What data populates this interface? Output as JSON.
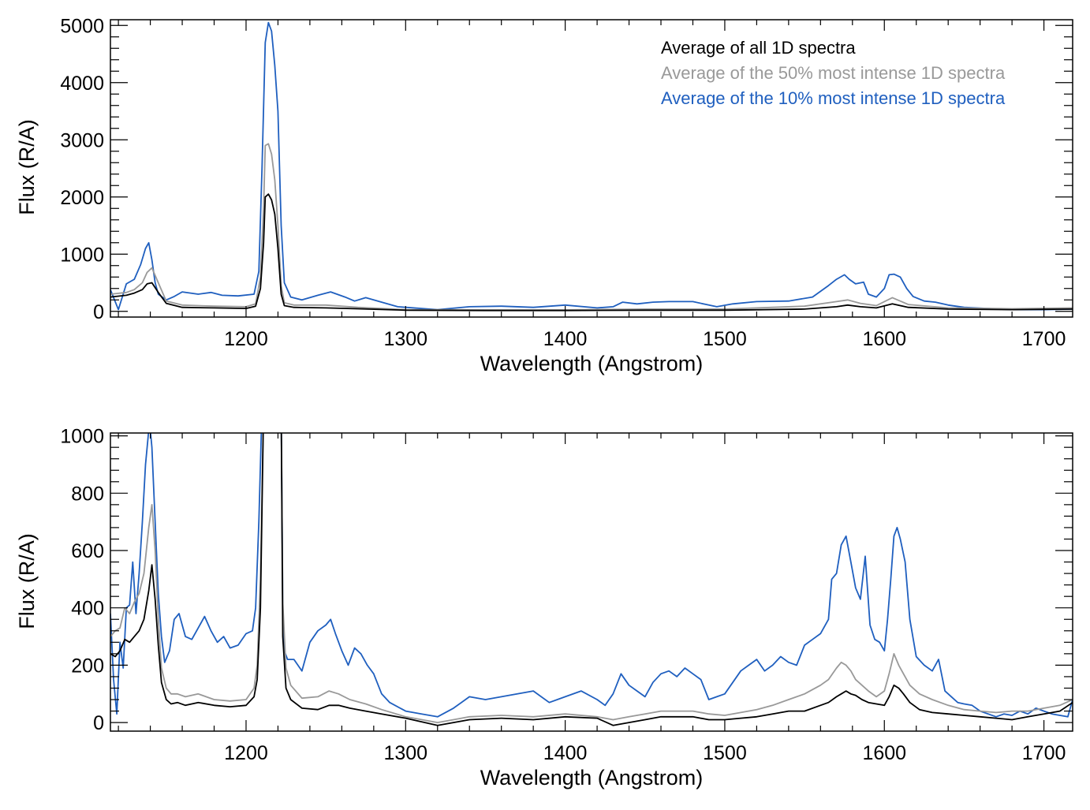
{
  "legend": {
    "items": [
      {
        "label": "Average of all 1D spectra",
        "color": "#000000"
      },
      {
        "label": "Average of the 50% most intense 1D spectra",
        "color": "#999999"
      },
      {
        "label": "Average of the 10% most intense 1D spectra",
        "color": "#1f5fbf"
      }
    ]
  },
  "chart_data": [
    {
      "type": "line",
      "xlabel": "Wavelength (Angstrom)",
      "ylabel": "Flux (R/A)",
      "xlim": [
        1115,
        1718
      ],
      "ylim": [
        -100,
        5100
      ],
      "xticks": [
        1200,
        1300,
        1400,
        1500,
        1600,
        1700
      ],
      "yticks": [
        0,
        1000,
        2000,
        3000,
        4000,
        5000
      ],
      "grid": false,
      "legend": "top-right",
      "series": [
        {
          "name": "Average of all 1D spectra",
          "color": "#000000",
          "x": [
            1115,
            1125,
            1130,
            1135,
            1138,
            1141,
            1145,
            1150,
            1160,
            1180,
            1200,
            1206,
            1209,
            1211,
            1212,
            1214,
            1216,
            1218,
            1220,
            1222,
            1224,
            1230,
            1250,
            1270,
            1300,
            1350,
            1400,
            1450,
            1500,
            1550,
            1570,
            1577,
            1585,
            1595,
            1605,
            1615,
            1640,
            1680,
            1718
          ],
          "y": [
            250,
            280,
            320,
            380,
            480,
            500,
            330,
            140,
            70,
            60,
            50,
            90,
            400,
            1200,
            2000,
            2050,
            1950,
            1700,
            1100,
            300,
            100,
            70,
            60,
            45,
            20,
            15,
            15,
            20,
            20,
            40,
            80,
            110,
            80,
            60,
            130,
            70,
            40,
            30,
            40
          ]
        },
        {
          "name": "Average of the 50% most intense 1D spectra",
          "color": "#999999",
          "x": [
            1115,
            1125,
            1130,
            1135,
            1138,
            1141,
            1145,
            1150,
            1160,
            1180,
            1200,
            1206,
            1209,
            1211,
            1212,
            1214,
            1216,
            1218,
            1220,
            1222,
            1224,
            1230,
            1250,
            1270,
            1300,
            1350,
            1400,
            1450,
            1500,
            1550,
            1570,
            1577,
            1585,
            1595,
            1605,
            1615,
            1640,
            1680,
            1718
          ],
          "y": [
            300,
            330,
            380,
            500,
            680,
            760,
            500,
            180,
            110,
            90,
            80,
            130,
            600,
            1800,
            2900,
            2930,
            2750,
            2300,
            1500,
            450,
            150,
            110,
            110,
            70,
            30,
            25,
            25,
            40,
            40,
            90,
            170,
            200,
            140,
            100,
            240,
            120,
            60,
            45,
            60
          ]
        },
        {
          "name": "Average of the 10% most intense 1D spectra",
          "color": "#1f5fbf",
          "x": [
            1115,
            1120,
            1125,
            1130,
            1134,
            1137,
            1139,
            1141,
            1143,
            1145,
            1150,
            1155,
            1160,
            1170,
            1178,
            1185,
            1195,
            1205,
            1208,
            1210,
            1212,
            1214,
            1216,
            1218,
            1220,
            1222,
            1224,
            1228,
            1235,
            1245,
            1253,
            1262,
            1268,
            1275,
            1285,
            1295,
            1320,
            1340,
            1360,
            1380,
            1400,
            1420,
            1430,
            1436,
            1445,
            1455,
            1465,
            1480,
            1495,
            1505,
            1520,
            1540,
            1555,
            1565,
            1570,
            1575,
            1578,
            1582,
            1587,
            1590,
            1595,
            1600,
            1603,
            1606,
            1610,
            1614,
            1618,
            1625,
            1632,
            1640,
            1650,
            1665,
            1680,
            1700,
            1718
          ],
          "y": [
            380,
            30,
            480,
            560,
            820,
            1100,
            1200,
            900,
            500,
            300,
            200,
            260,
            340,
            300,
            330,
            280,
            270,
            300,
            700,
            2500,
            4700,
            5050,
            4900,
            4300,
            3500,
            1500,
            500,
            250,
            200,
            280,
            340,
            250,
            180,
            240,
            160,
            80,
            30,
            80,
            90,
            70,
            110,
            60,
            80,
            160,
            130,
            160,
            170,
            170,
            80,
            130,
            170,
            180,
            250,
            450,
            560,
            640,
            560,
            480,
            510,
            300,
            250,
            400,
            640,
            650,
            600,
            400,
            260,
            180,
            160,
            110,
            70,
            50,
            30,
            30,
            40
          ]
        }
      ]
    },
    {
      "type": "line",
      "xlabel": "Wavelength (Angstrom)",
      "ylabel": "Flux (R/A)",
      "xlim": [
        1115,
        1718
      ],
      "ylim": [
        -30,
        1010
      ],
      "xticks": [
        1200,
        1300,
        1400,
        1500,
        1600,
        1700
      ],
      "yticks": [
        0,
        200,
        400,
        600,
        800,
        1000
      ],
      "grid": false,
      "series": [
        {
          "name": "Average of all 1D spectra",
          "color": "#000000",
          "x": [
            1115,
            1118,
            1121,
            1124,
            1127,
            1130,
            1133,
            1136,
            1139,
            1141,
            1143,
            1145,
            1147,
            1150,
            1153,
            1157,
            1162,
            1170,
            1180,
            1190,
            1200,
            1205,
            1207,
            1209,
            1211,
            1222,
            1223,
            1225,
            1228,
            1235,
            1245,
            1252,
            1258,
            1265,
            1275,
            1285,
            1300,
            1320,
            1330,
            1340,
            1360,
            1380,
            1400,
            1420,
            1430,
            1440,
            1450,
            1460,
            1470,
            1480,
            1490,
            1500,
            1510,
            1520,
            1530,
            1540,
            1550,
            1560,
            1565,
            1570,
            1573,
            1576,
            1579,
            1582,
            1586,
            1590,
            1595,
            1600,
            1603,
            1606,
            1609,
            1612,
            1616,
            1622,
            1630,
            1640,
            1650,
            1660,
            1670,
            1680,
            1690,
            1700,
            1710,
            1718
          ],
          "y": [
            240,
            230,
            250,
            290,
            280,
            300,
            320,
            360,
            460,
            550,
            430,
            270,
            140,
            80,
            65,
            70,
            60,
            70,
            60,
            55,
            60,
            90,
            150,
            400,
            1100,
            1100,
            300,
            120,
            80,
            50,
            45,
            60,
            60,
            50,
            40,
            30,
            15,
            -10,
            0,
            10,
            15,
            10,
            20,
            15,
            -10,
            0,
            10,
            20,
            20,
            20,
            10,
            10,
            15,
            20,
            30,
            40,
            40,
            60,
            70,
            90,
            100,
            110,
            100,
            95,
            80,
            70,
            65,
            60,
            90,
            130,
            120,
            100,
            70,
            45,
            35,
            30,
            25,
            20,
            15,
            10,
            20,
            30,
            40,
            70
          ]
        },
        {
          "name": "Average of the 50% most intense 1D spectra",
          "color": "#999999",
          "x": [
            1115,
            1118,
            1121,
            1124,
            1127,
            1130,
            1133,
            1136,
            1139,
            1141,
            1143,
            1145,
            1147,
            1150,
            1153,
            1157,
            1162,
            1170,
            1180,
            1190,
            1200,
            1205,
            1207,
            1209,
            1211,
            1222,
            1223,
            1225,
            1228,
            1235,
            1245,
            1252,
            1258,
            1265,
            1275,
            1285,
            1300,
            1320,
            1330,
            1340,
            1360,
            1380,
            1400,
            1420,
            1430,
            1440,
            1450,
            1460,
            1470,
            1480,
            1490,
            1500,
            1510,
            1520,
            1530,
            1540,
            1550,
            1560,
            1565,
            1570,
            1573,
            1576,
            1579,
            1582,
            1586,
            1590,
            1595,
            1600,
            1603,
            1606,
            1609,
            1612,
            1616,
            1622,
            1630,
            1640,
            1650,
            1660,
            1670,
            1680,
            1690,
            1700,
            1710,
            1718
          ],
          "y": [
            300,
            320,
            330,
            400,
            380,
            420,
            450,
            520,
            680,
            760,
            600,
            360,
            190,
            120,
            100,
            100,
            90,
            100,
            80,
            75,
            80,
            120,
            200,
            500,
            1100,
            1100,
            420,
            190,
            130,
            85,
            90,
            110,
            100,
            80,
            65,
            45,
            20,
            0,
            10,
            20,
            25,
            20,
            30,
            20,
            10,
            20,
            30,
            40,
            40,
            40,
            30,
            25,
            35,
            45,
            60,
            80,
            100,
            130,
            150,
            190,
            210,
            200,
            180,
            150,
            130,
            110,
            90,
            110,
            170,
            240,
            200,
            170,
            130,
            100,
            80,
            60,
            45,
            40,
            35,
            40,
            40,
            50,
            60,
            80
          ]
        },
        {
          "name": "Average of the 10% most intense 1D spectra",
          "color": "#1f5fbf",
          "x": [
            1115,
            1117,
            1119,
            1121,
            1123,
            1125,
            1127,
            1129,
            1131,
            1133,
            1135,
            1137,
            1139,
            1140,
            1141,
            1143,
            1145,
            1147,
            1149,
            1152,
            1155,
            1158,
            1162,
            1166,
            1170,
            1174,
            1178,
            1182,
            1186,
            1190,
            1195,
            1200,
            1204,
            1206,
            1208,
            1210,
            1211,
            1222,
            1223,
            1224,
            1226,
            1230,
            1235,
            1240,
            1245,
            1250,
            1253,
            1256,
            1260,
            1264,
            1268,
            1272,
            1276,
            1280,
            1285,
            1290,
            1300,
            1310,
            1320,
            1330,
            1340,
            1350,
            1360,
            1370,
            1380,
            1390,
            1400,
            1410,
            1420,
            1425,
            1430,
            1435,
            1440,
            1445,
            1450,
            1455,
            1460,
            1465,
            1470,
            1475,
            1480,
            1485,
            1490,
            1495,
            1500,
            1505,
            1510,
            1515,
            1520,
            1525,
            1530,
            1535,
            1540,
            1545,
            1550,
            1555,
            1560,
            1565,
            1567,
            1570,
            1573,
            1576,
            1579,
            1582,
            1585,
            1588,
            1591,
            1594,
            1597,
            1600,
            1602,
            1604,
            1606,
            1608,
            1610,
            1613,
            1616,
            1620,
            1625,
            1630,
            1634,
            1638,
            1642,
            1646,
            1650,
            1655,
            1660,
            1665,
            1670,
            1675,
            1680,
            1685,
            1690,
            1695,
            1700,
            1705,
            1710,
            1715,
            1718
          ],
          "y": [
            380,
            150,
            30,
            280,
            190,
            400,
            410,
            560,
            380,
            520,
            700,
            900,
            1020,
            1020,
            960,
            700,
            450,
            300,
            210,
            250,
            360,
            380,
            300,
            290,
            330,
            370,
            320,
            280,
            300,
            260,
            270,
            310,
            320,
            400,
            700,
            1100,
            1100,
            1100,
            400,
            250,
            220,
            220,
            180,
            280,
            320,
            340,
            360,
            310,
            250,
            200,
            260,
            240,
            200,
            170,
            100,
            70,
            40,
            30,
            20,
            50,
            90,
            80,
            90,
            100,
            110,
            70,
            90,
            110,
            80,
            60,
            100,
            170,
            130,
            110,
            90,
            140,
            170,
            180,
            160,
            190,
            170,
            150,
            80,
            90,
            100,
            140,
            180,
            200,
            220,
            180,
            200,
            230,
            210,
            200,
            270,
            290,
            310,
            360,
            500,
            520,
            620,
            650,
            560,
            470,
            430,
            580,
            340,
            290,
            280,
            250,
            360,
            500,
            650,
            680,
            640,
            560,
            360,
            230,
            200,
            180,
            220,
            110,
            90,
            70,
            65,
            60,
            40,
            30,
            20,
            30,
            25,
            40,
            30,
            50,
            40,
            30,
            25,
            20,
            80
          ]
        }
      ]
    }
  ]
}
